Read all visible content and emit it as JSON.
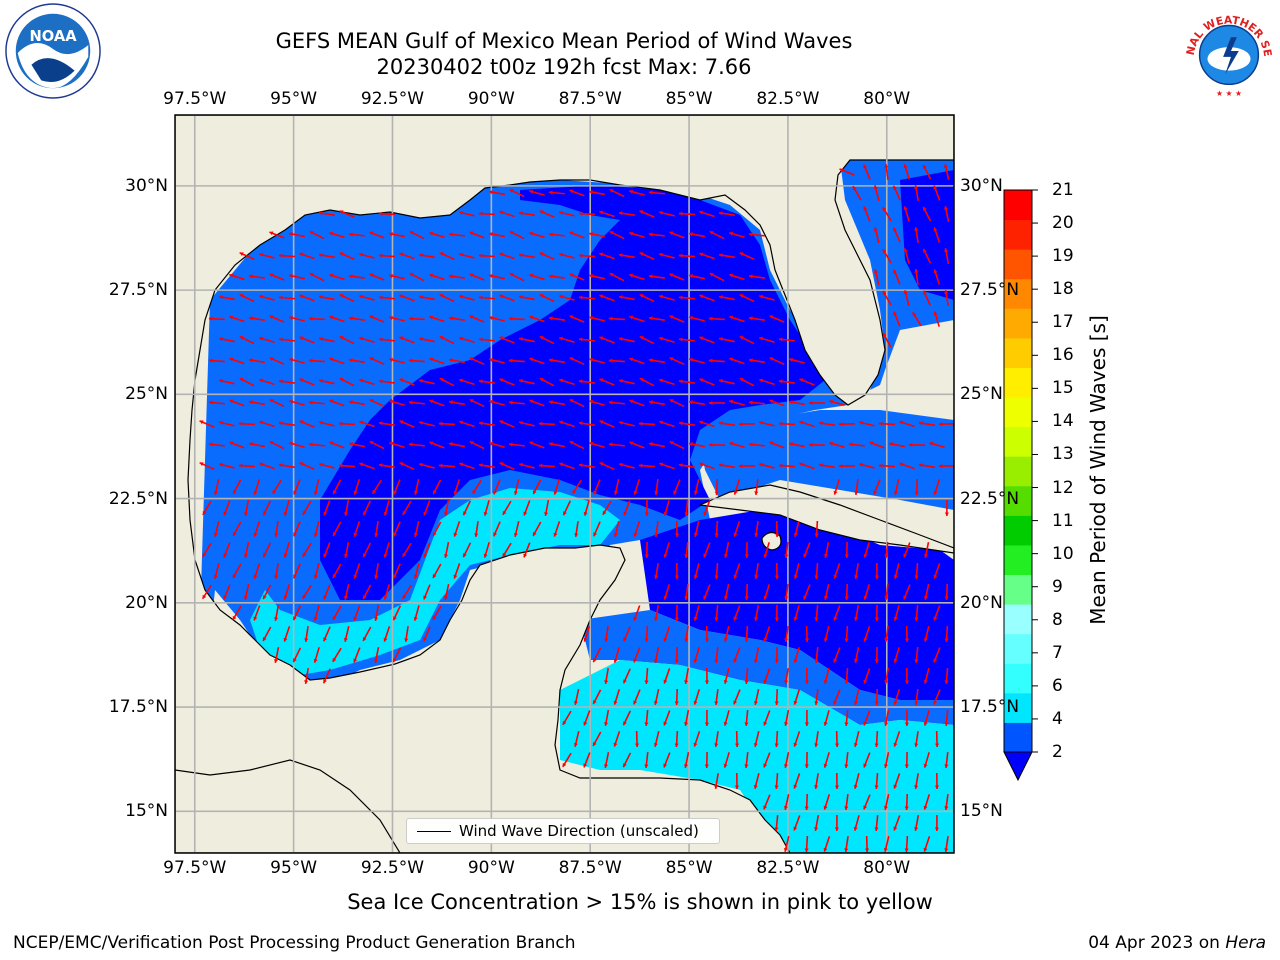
{
  "header": {
    "title_line1": "GEFS MEAN Gulf of Mexico Mean Period of Wind Waves",
    "title_line2": "20230402 t00z 192h fcst   Max: 7.66"
  },
  "map": {
    "region": "Gulf of Mexico",
    "lon_ticks": [
      "97.5°W",
      "95°W",
      "92.5°W",
      "90°W",
      "87.5°W",
      "85°W",
      "82.5°W",
      "80°W"
    ],
    "lat_ticks": [
      "30°N",
      "27.5°N",
      "25°N",
      "22.5°N",
      "20°N",
      "17.5°N",
      "15°N"
    ],
    "lon_range": [
      -98,
      -78.3
    ],
    "lat_range": [
      14,
      31.7
    ],
    "gridlines": true,
    "colors": {
      "land": "#efedde",
      "coast": "#000000",
      "grid": "#b3b3b3",
      "arrow": "#ff0000"
    },
    "legend_label": "Wind Wave Direction (unscaled)"
  },
  "colorbar": {
    "label": "Mean Period of Wind Waves [s]",
    "ticks": [
      "2",
      "4",
      "6",
      "7",
      "8",
      "9",
      "10",
      "11",
      "12",
      "13",
      "14",
      "15",
      "16",
      "17",
      "18",
      "19",
      "20",
      "21"
    ],
    "colors": [
      "#0055ff",
      "#00e6ff",
      "#33ffff",
      "#66ffff",
      "#99ffff",
      "#66ff88",
      "#22ee22",
      "#00cc00",
      "#55dd00",
      "#99ee00",
      "#ccff00",
      "#eeff00",
      "#ffee00",
      "#ffcc00",
      "#ffaa00",
      "#ff8800",
      "#ff5500",
      "#ff2200",
      "#ff0000"
    ],
    "under_color": "#0000ff",
    "extend": "min"
  },
  "footer": {
    "note": "Sea Ice Concentration > 15% is shown in pink to yellow",
    "left": "NCEP/EMC/Verification Post Processing Product Generation Branch",
    "date": "04 Apr 2023 on ",
    "machine": "Hera"
  },
  "logos": {
    "noaa_text": "NOAA",
    "nws_text": "NATIONAL WEATHER SERVICE"
  }
}
